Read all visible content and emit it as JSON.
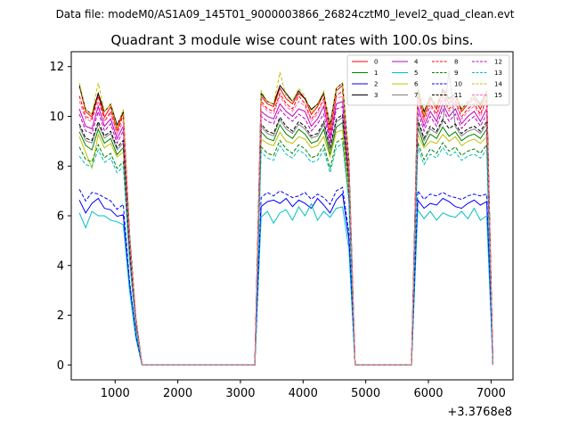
{
  "chart_data": {
    "type": "line",
    "suptitle": "Data file: modeM0/AS1A09_145T01_9000003866_26824cztM0_level2_quad_clean.evt",
    "title": "Quadrant 3 module wise count rates with 100.0s bins.",
    "xlabel": "",
    "ylabel": "",
    "x_offset_label": "+3.3768e8",
    "xlim": [
      300,
      7350
    ],
    "ylim": [
      -0.6,
      12.6
    ],
    "xticks": [
      1000,
      2000,
      3000,
      4000,
      5000,
      6000,
      7000
    ],
    "yticks": [
      0,
      2,
      4,
      6,
      8,
      10,
      12
    ],
    "grid": false,
    "legend": {
      "placement": "top-right",
      "columns": 4,
      "entries": [
        "0",
        "1",
        "2",
        "3",
        "4",
        "5",
        "6",
        "7",
        "8",
        "9",
        "10",
        "11",
        "12",
        "13",
        "14",
        "15"
      ]
    },
    "x": [
      430,
      530,
      630,
      730,
      830,
      930,
      1030,
      1130,
      1230,
      1330,
      1430,
      1530,
      1630,
      1730,
      1830,
      1930,
      2030,
      2130,
      2230,
      2330,
      2430,
      2530,
      2630,
      2730,
      2830,
      2930,
      3030,
      3130,
      3230,
      3330,
      3430,
      3530,
      3630,
      3730,
      3830,
      3930,
      4030,
      4130,
      4230,
      4330,
      4430,
      4530,
      4630,
      4730,
      4830,
      4930,
      5030,
      5130,
      5230,
      5330,
      5430,
      5530,
      5630,
      5730,
      5830,
      5930,
      6030,
      6130,
      6230,
      6330,
      6430,
      6530,
      6630,
      6730,
      6830,
      6930,
      7030
    ],
    "segments": [
      [
        0,
        10
      ],
      [
        10,
        29
      ],
      [
        29,
        44
      ],
      [
        44,
        54
      ],
      [
        54,
        66
      ]
    ],
    "series": [
      {
        "name": "0",
        "color": "#ff0000",
        "dash": "solid",
        "level": 10.5,
        "profile": [
          1.07,
          0.97,
          0.95,
          1.04,
          0.95,
          0.99,
          0.9,
          0.97,
          0.5,
          0.18,
          1.03,
          1.0,
          0.99,
          1.06,
          1.02,
          1.0,
          1.04,
          1.02,
          0.96,
          0.99,
          1.04,
          0.9,
          1.05,
          1.07,
          0.78,
          1.05,
          0.95,
          1.02,
          0.98,
          1.05,
          1.0,
          1.03,
          0.97,
          1.0,
          1.02,
          0.98,
          1.04,
          0.95,
          1.02,
          1.0,
          0.99,
          0.77
        ]
      },
      {
        "name": "1",
        "color": "#008000",
        "dash": "solid",
        "level": 9.2,
        "profile": [
          1.02,
          0.96,
          0.94,
          1.03,
          0.97,
          0.99,
          0.92,
          0.95,
          0.5,
          0.18,
          1.02,
          0.99,
          0.98,
          1.05,
          1.01,
          0.99,
          1.03,
          1.01,
          0.97,
          0.98,
          1.03,
          0.92,
          1.04,
          1.06,
          0.78,
          1.04,
          0.96,
          1.01,
          0.99,
          1.04,
          1.0,
          1.02,
          0.98,
          1.0,
          1.01,
          0.99,
          1.03,
          0.96,
          1.01,
          1.0,
          0.98,
          0.77
        ]
      },
      {
        "name": "2",
        "color": "#0000ff",
        "dash": "solid",
        "level": 6.5,
        "profile": [
          1.02,
          0.94,
          1.0,
          1.03,
          0.97,
          0.96,
          0.92,
          0.93,
          0.5,
          0.18,
          0.98,
          1.01,
          1.02,
          1.0,
          1.03,
          0.98,
          1.02,
          1.0,
          0.97,
          1.03,
          0.99,
          0.94,
          1.02,
          1.06,
          0.78,
          1.02,
          0.97,
          1.0,
          0.99,
          1.03,
          1.01,
          0.98,
          0.97,
          1.0,
          1.02,
          0.99,
          1.01,
          0.96,
          1.0,
          1.0,
          0.98,
          0.77
        ]
      },
      {
        "name": "3",
        "color": "#000000",
        "dash": "solid",
        "level": 10.6,
        "profile": [
          1.06,
          0.97,
          0.95,
          1.03,
          0.96,
          0.99,
          0.91,
          0.96,
          0.5,
          0.18,
          1.03,
          1.0,
          0.99,
          1.06,
          1.03,
          1.0,
          1.04,
          1.01,
          0.97,
          0.99,
          1.03,
          0.91,
          1.05,
          1.07,
          0.78,
          1.05,
          0.96,
          1.02,
          0.98,
          1.05,
          1.01,
          1.03,
          0.97,
          1.0,
          1.02,
          0.99,
          1.04,
          0.95,
          1.02,
          1.0,
          0.99,
          0.77
        ]
      },
      {
        "name": "4",
        "color": "#c000c0",
        "dash": "solid",
        "level": 10.0,
        "profile": [
          1.03,
          0.96,
          0.95,
          1.04,
          0.96,
          0.99,
          0.91,
          0.96,
          0.5,
          0.18,
          1.02,
          1.0,
          0.99,
          1.05,
          1.02,
          1.0,
          1.03,
          1.02,
          0.96,
          0.99,
          1.04,
          0.91,
          1.05,
          1.06,
          0.78,
          1.04,
          0.96,
          1.02,
          0.98,
          1.05,
          1.0,
          1.03,
          0.97,
          1.0,
          1.02,
          0.98,
          1.03,
          0.95,
          1.02,
          1.0,
          0.99,
          0.77
        ]
      },
      {
        "name": "5",
        "color": "#00c0c0",
        "dash": "solid",
        "level": 6.0,
        "profile": [
          1.02,
          0.92,
          1.03,
          1.0,
          1.0,
          0.97,
          0.96,
          0.94,
          0.5,
          0.18,
          0.99,
          1.03,
          0.95,
          1.02,
          1.04,
          0.97,
          1.06,
          1.0,
          1.08,
          0.97,
          1.03,
          0.99,
          1.05,
          1.06,
          0.78,
          1.04,
          0.98,
          1.03,
          0.97,
          1.02,
          1.0,
          0.99,
          1.03,
          0.98,
          1.05,
          0.97,
          1.0,
          1.01,
          0.98,
          0.98,
          0.95,
          0.65
        ]
      },
      {
        "name": "6",
        "color": "#c0c000",
        "dash": "solid",
        "level": 9.0,
        "profile": [
          1.02,
          0.95,
          0.88,
          1.03,
          0.97,
          0.99,
          0.93,
          0.95,
          0.5,
          0.18,
          1.01,
          0.99,
          0.98,
          1.04,
          1.0,
          0.99,
          1.02,
          1.01,
          0.97,
          0.98,
          1.02,
          0.93,
          1.04,
          1.05,
          0.78,
          1.03,
          0.97,
          1.0,
          0.99,
          1.03,
          1.0,
          1.02,
          0.98,
          1.0,
          1.01,
          0.99,
          1.02,
          0.96,
          1.01,
          1.0,
          0.98,
          0.77
        ]
      },
      {
        "name": "7",
        "color": "#808080",
        "dash": "solid",
        "level": 9.4,
        "profile": [
          1.02,
          0.96,
          0.95,
          1.03,
          0.97,
          0.99,
          0.92,
          0.95,
          0.5,
          0.18,
          1.02,
          0.99,
          0.98,
          1.05,
          1.01,
          0.99,
          1.03,
          1.01,
          0.97,
          0.98,
          1.03,
          0.92,
          1.04,
          1.06,
          0.78,
          1.04,
          0.96,
          1.01,
          0.99,
          1.04,
          1.26,
          1.02,
          0.98,
          1.0,
          1.01,
          0.99,
          1.03,
          0.96,
          1.01,
          1.0,
          0.98,
          0.77
        ]
      },
      {
        "name": "8",
        "color": "#ff0000",
        "dash": "dashed",
        "level": 10.3,
        "profile": [
          1.05,
          0.97,
          0.96,
          1.05,
          0.95,
          0.99,
          0.9,
          0.98,
          0.5,
          0.18,
          1.03,
          1.0,
          0.99,
          1.06,
          1.02,
          1.0,
          1.05,
          1.02,
          0.96,
          0.99,
          1.04,
          0.9,
          1.05,
          1.07,
          0.78,
          1.05,
          0.95,
          1.02,
          0.98,
          1.05,
          1.0,
          1.03,
          0.97,
          1.0,
          1.02,
          0.98,
          1.04,
          0.95,
          1.02,
          1.0,
          0.99,
          0.77
        ]
      },
      {
        "name": "9",
        "color": "#008000",
        "dash": "dashed",
        "level": 8.6,
        "profile": [
          1.02,
          0.96,
          0.95,
          1.03,
          0.97,
          0.99,
          0.92,
          0.95,
          0.5,
          0.18,
          1.02,
          0.99,
          0.98,
          1.05,
          1.01,
          0.99,
          1.03,
          1.01,
          0.97,
          0.98,
          1.03,
          0.92,
          1.04,
          1.06,
          0.78,
          1.04,
          0.96,
          1.01,
          0.99,
          1.04,
          1.0,
          1.02,
          0.98,
          1.0,
          1.01,
          0.99,
          1.03,
          0.96,
          1.01,
          1.0,
          0.98,
          0.77
        ]
      },
      {
        "name": "10",
        "color": "#0000ff",
        "dash": "dashed",
        "level": 6.8,
        "profile": [
          1.04,
          0.97,
          1.02,
          1.01,
          0.99,
          0.97,
          0.92,
          0.95,
          0.5,
          0.18,
          0.99,
          1.02,
          1.0,
          1.03,
          1.01,
          0.99,
          1.0,
          1.02,
          0.98,
          1.01,
          0.99,
          0.95,
          1.03,
          1.05,
          0.78,
          1.03,
          0.98,
          1.01,
          1.0,
          1.02,
          1.0,
          0.99,
          0.98,
          1.0,
          1.01,
          1.0,
          1.01,
          0.97,
          1.0,
          1.0,
          0.98,
          0.77
        ]
      },
      {
        "name": "11",
        "color": "#000000",
        "dash": "dashed",
        "level": 9.5,
        "profile": [
          1.02,
          0.96,
          0.95,
          1.03,
          0.97,
          0.99,
          0.92,
          0.95,
          0.5,
          0.18,
          1.02,
          0.99,
          0.98,
          1.05,
          1.01,
          0.99,
          1.03,
          1.01,
          0.97,
          0.98,
          1.03,
          0.92,
          1.04,
          1.06,
          0.78,
          1.04,
          0.96,
          1.01,
          0.99,
          1.04,
          1.0,
          1.02,
          0.98,
          1.0,
          1.01,
          0.99,
          1.03,
          0.96,
          1.01,
          1.0,
          0.98,
          0.77
        ]
      },
      {
        "name": "12",
        "color": "#c000c0",
        "dash": "dashed",
        "level": 9.8,
        "profile": [
          1.03,
          0.96,
          0.95,
          1.04,
          0.96,
          0.99,
          0.91,
          0.96,
          0.5,
          0.18,
          1.02,
          1.0,
          0.99,
          1.05,
          1.02,
          1.0,
          1.03,
          1.01,
          0.96,
          0.99,
          1.03,
          0.91,
          1.05,
          1.06,
          0.78,
          1.04,
          0.96,
          1.02,
          0.98,
          1.05,
          1.0,
          1.03,
          0.97,
          1.0,
          1.02,
          0.98,
          1.03,
          0.95,
          1.02,
          1.0,
          0.99,
          0.77
        ]
      },
      {
        "name": "13",
        "color": "#00c0c0",
        "dash": "dashed",
        "level": 8.4,
        "profile": [
          1.0,
          0.96,
          0.95,
          1.03,
          0.97,
          0.99,
          0.92,
          0.95,
          0.5,
          0.18,
          1.02,
          0.99,
          0.98,
          1.05,
          1.01,
          0.99,
          1.03,
          1.01,
          0.97,
          0.98,
          1.03,
          0.92,
          1.04,
          1.06,
          0.78,
          1.04,
          0.96,
          1.01,
          0.99,
          1.04,
          1.0,
          1.02,
          0.98,
          1.0,
          1.01,
          0.99,
          1.03,
          0.96,
          1.01,
          1.0,
          0.98,
          0.77
        ]
      },
      {
        "name": "14",
        "color": "#c0c000",
        "dash": "dashed",
        "level": 10.6,
        "profile": [
          1.07,
          0.97,
          0.95,
          1.07,
          0.96,
          0.99,
          0.9,
          0.97,
          0.5,
          0.18,
          1.04,
          1.0,
          0.99,
          1.11,
          1.02,
          1.0,
          1.05,
          1.02,
          0.96,
          0.99,
          1.04,
          0.9,
          1.05,
          1.07,
          0.78,
          1.06,
          0.95,
          1.02,
          0.98,
          1.05,
          1.0,
          1.03,
          0.97,
          1.0,
          1.02,
          0.98,
          1.04,
          0.95,
          1.02,
          1.0,
          0.99,
          0.77
        ]
      },
      {
        "name": "15",
        "color": "#ff69b4",
        "dash": "dashed",
        "level": 10.2,
        "profile": [
          1.04,
          0.97,
          0.96,
          1.04,
          0.96,
          0.99,
          0.91,
          0.96,
          0.5,
          0.18,
          1.03,
          1.0,
          0.99,
          1.06,
          1.02,
          1.0,
          1.04,
          1.02,
          0.96,
          0.99,
          1.04,
          0.91,
          1.05,
          1.06,
          0.78,
          1.05,
          0.96,
          1.02,
          0.98,
          1.05,
          1.0,
          1.03,
          0.97,
          1.0,
          1.02,
          0.98,
          1.04,
          0.95,
          1.02,
          1.0,
          0.99,
          0.77
        ]
      }
    ]
  }
}
